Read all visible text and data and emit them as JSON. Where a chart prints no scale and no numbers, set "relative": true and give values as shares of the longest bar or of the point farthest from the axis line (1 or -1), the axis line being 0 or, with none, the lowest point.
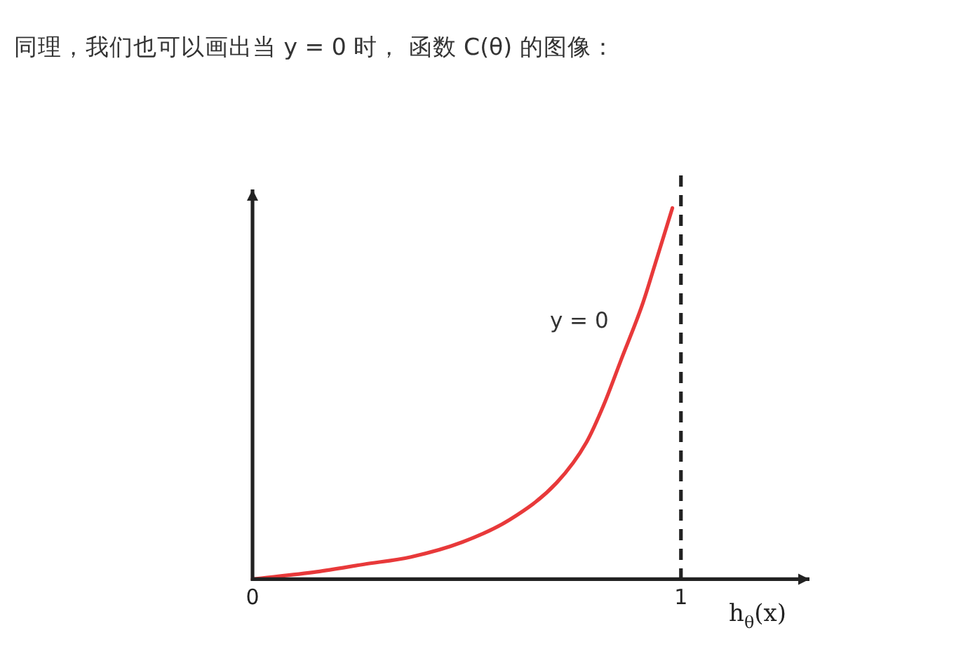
{
  "chart_data": {
    "type": "line",
    "title": "同理，我们也可以画出当 y = 0 时， 函数 C(θ) 的图像：",
    "xlabel": "h$_{θ}$(x)",
    "relative": true,
    "xlim": [
      0,
      1.3
    ],
    "xticks": [
      0,
      1
    ],
    "series": [
      {
        "name": "y = 0",
        "color": "#e8393a",
        "x": [
          0,
          0.15,
          0.26,
          0.37,
          0.49,
          0.6,
          0.71,
          0.78,
          0.82,
          0.86,
          0.91,
          0.94,
          0.98
        ],
        "values": [
          0,
          0.02,
          0.04,
          0.06,
          0.1,
          0.16,
          0.26,
          0.37,
          0.47,
          0.59,
          0.74,
          0.85,
          1
        ]
      }
    ],
    "ref_lines": [
      {
        "axis": "x",
        "value": 1,
        "color": "#222222",
        "line_style": "dashed"
      }
    ],
    "line_style": "solid"
  }
}
